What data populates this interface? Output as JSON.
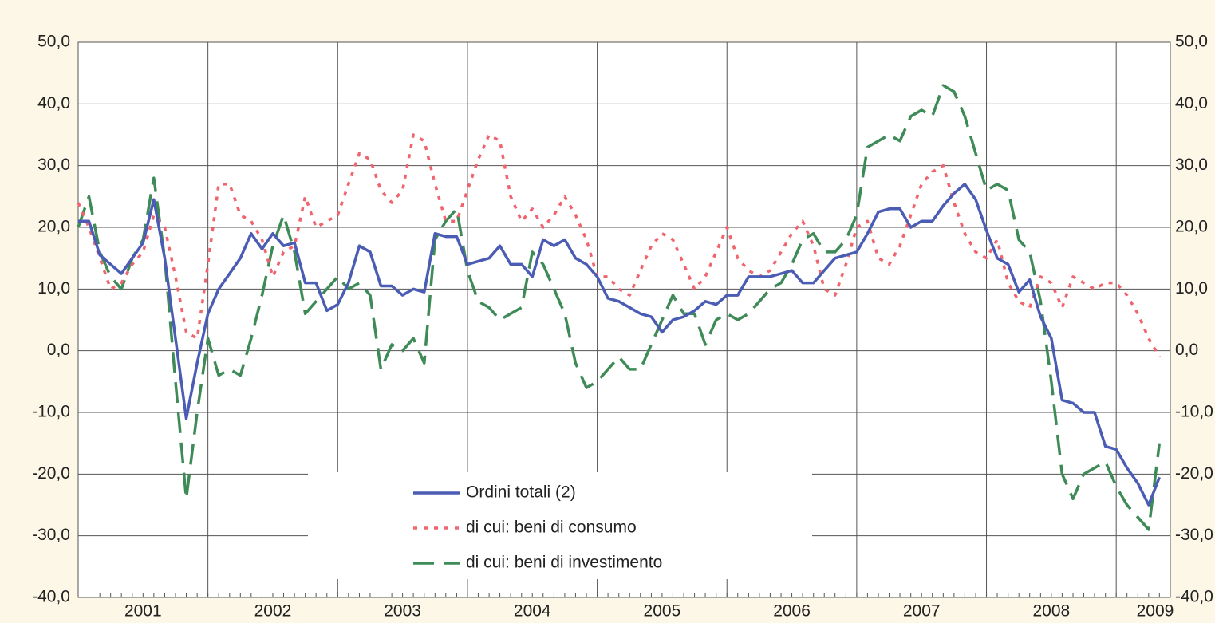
{
  "chart_data": {
    "type": "line",
    "x": [
      2001,
      2001.083,
      2001.167,
      2001.25,
      2001.333,
      2001.417,
      2001.5,
      2001.583,
      2001.667,
      2001.75,
      2001.833,
      2001.917,
      2002,
      2002.083,
      2002.167,
      2002.25,
      2002.333,
      2002.417,
      2002.5,
      2002.583,
      2002.667,
      2002.75,
      2002.833,
      2002.917,
      2003,
      2003.083,
      2003.167,
      2003.25,
      2003.333,
      2003.417,
      2003.5,
      2003.583,
      2003.667,
      2003.75,
      2003.833,
      2003.917,
      2004,
      2004.083,
      2004.167,
      2004.25,
      2004.333,
      2004.417,
      2004.5,
      2004.583,
      2004.667,
      2004.75,
      2004.833,
      2004.917,
      2005,
      2005.083,
      2005.167,
      2005.25,
      2005.333,
      2005.417,
      2005.5,
      2005.583,
      2005.667,
      2005.75,
      2005.833,
      2005.917,
      2006,
      2006.083,
      2006.167,
      2006.25,
      2006.333,
      2006.417,
      2006.5,
      2006.583,
      2006.667,
      2006.75,
      2006.833,
      2006.917,
      2007,
      2007.083,
      2007.167,
      2007.25,
      2007.333,
      2007.417,
      2007.5,
      2007.583,
      2007.667,
      2007.75,
      2007.833,
      2007.917,
      2008,
      2008.083,
      2008.167,
      2008.25,
      2008.333,
      2008.417,
      2008.5,
      2008.583,
      2008.667,
      2008.75,
      2008.833,
      2008.917,
      2009,
      2009.083,
      2009.167,
      2009.25,
      2009.333
    ],
    "series": [
      {
        "name": "Ordini totali (2)",
        "color": "#4a5cb4",
        "dash": "solid",
        "values": [
          21,
          21,
          15.5,
          14,
          12.5,
          15,
          17.5,
          24.5,
          15,
          2,
          -11,
          -2,
          6,
          10,
          12.5,
          15,
          19,
          16.5,
          19,
          17,
          17.5,
          11,
          11,
          6.5,
          7.5,
          11,
          17,
          16,
          10.5,
          10.5,
          9,
          10,
          9.5,
          19,
          18.5,
          18.5,
          14,
          14.5,
          15,
          17,
          14,
          14,
          12,
          18,
          17,
          18,
          15,
          14,
          12,
          8.5,
          8,
          7,
          6,
          5.5,
          3,
          5,
          5.5,
          6.5,
          8,
          7.5,
          9,
          9,
          12,
          12,
          12,
          12.5,
          13,
          11,
          11,
          13,
          15,
          15.5,
          16,
          19,
          22.5,
          23,
          23,
          20,
          21,
          21,
          23.5,
          25.5,
          27,
          24.5,
          19.5,
          15,
          14,
          9.5,
          11.5,
          5.5,
          2,
          -8,
          -8.5,
          -10,
          -10,
          -15.5,
          -16,
          -19,
          -21.5,
          -25,
          -20.5
        ]
      },
      {
        "name": "di cui: beni di consumo",
        "color": "#f0646e",
        "dash": "dotted",
        "values": [
          24,
          20,
          15,
          10,
          11,
          14,
          16,
          22,
          20,
          12,
          3,
          2,
          14,
          27,
          27,
          22,
          21,
          18,
          12,
          16,
          17,
          25,
          20,
          21,
          22,
          27,
          32,
          31,
          26,
          24,
          26,
          35,
          34,
          27,
          21,
          21,
          26,
          31,
          35,
          34,
          25,
          21,
          23,
          20,
          22,
          25,
          22,
          18,
          12,
          12,
          10,
          9,
          13,
          17,
          19,
          18,
          14,
          10,
          12,
          16,
          20,
          15,
          13,
          12,
          13,
          16,
          19,
          21,
          17,
          10,
          9,
          14,
          20,
          21,
          15,
          14,
          17,
          22,
          27,
          29,
          30,
          24,
          19,
          16,
          15,
          18,
          11,
          8,
          7,
          12,
          11,
          7,
          12,
          11,
          10,
          11,
          11,
          9,
          6,
          2,
          -1
        ]
      },
      {
        "name": "di cui: beni di investimento",
        "color": "#3f8b57",
        "dash": "dashed",
        "values": [
          20,
          25,
          16,
          12,
          10,
          15,
          18,
          28,
          15,
          -5,
          -24,
          -10,
          2,
          -4,
          -3,
          -4,
          2,
          9,
          17,
          22,
          16,
          6,
          8,
          10,
          12,
          10,
          11,
          9,
          -3,
          1,
          0,
          2,
          -2,
          18,
          21,
          23,
          13,
          8,
          7,
          5,
          6,
          7,
          16,
          14,
          10,
          6,
          -2,
          -6,
          -5,
          -3,
          -1,
          -3,
          -3,
          1,
          5,
          9,
          6,
          6,
          1,
          5,
          6,
          5,
          6,
          8,
          10,
          11,
          14,
          18,
          19,
          16,
          16,
          18,
          22,
          33,
          34,
          35,
          34,
          38,
          39,
          38,
          43,
          42,
          38,
          32,
          26,
          27,
          26,
          18,
          16,
          8,
          -5,
          -20,
          -24,
          -20,
          -19,
          -18,
          -22,
          -25,
          -27,
          -29,
          -15
        ]
      }
    ],
    "xlim": [
      2001,
      2009.417
    ],
    "xticks": [
      {
        "value": 2001.5,
        "label": "2001"
      },
      {
        "value": 2002.5,
        "label": "2002"
      },
      {
        "value": 2003.5,
        "label": "2003"
      },
      {
        "value": 2004.5,
        "label": "2004"
      },
      {
        "value": 2005.5,
        "label": "2005"
      },
      {
        "value": 2006.5,
        "label": "2006"
      },
      {
        "value": 2007.5,
        "label": "2007"
      },
      {
        "value": 2008.5,
        "label": "2008"
      },
      {
        "value": 2009.3,
        "label": "2009"
      }
    ],
    "xgrid": [
      2002,
      2003,
      2004,
      2005,
      2006,
      2007,
      2008,
      2009
    ],
    "ylim": [
      -40,
      50
    ],
    "yticks": [
      {
        "value": -40,
        "label": "-40,0"
      },
      {
        "value": -30,
        "label": "-30,0"
      },
      {
        "value": -20,
        "label": "-20,0"
      },
      {
        "value": -10,
        "label": "-10,0"
      },
      {
        "value": 0,
        "label": "0,0"
      },
      {
        "value": 10,
        "label": "10,0"
      },
      {
        "value": 20,
        "label": "20,0"
      },
      {
        "value": 30,
        "label": "30,0"
      },
      {
        "value": 40,
        "label": "40,0"
      },
      {
        "value": 50,
        "label": "50,0"
      }
    ],
    "y2lim": [
      -40,
      50
    ],
    "y2ticks": [
      {
        "value": -40,
        "label": "-40,0"
      },
      {
        "value": -30,
        "label": "-30,0"
      },
      {
        "value": -20,
        "label": "-20,0"
      },
      {
        "value": -10,
        "label": "-10,0"
      },
      {
        "value": 0,
        "label": "0,0"
      },
      {
        "value": 10,
        "label": "10,0"
      },
      {
        "value": 20,
        "label": "20,0"
      },
      {
        "value": 30,
        "label": "30,0"
      },
      {
        "value": 40,
        "label": "40,0"
      },
      {
        "value": 50,
        "label": "50,0"
      }
    ],
    "grid": true
  }
}
